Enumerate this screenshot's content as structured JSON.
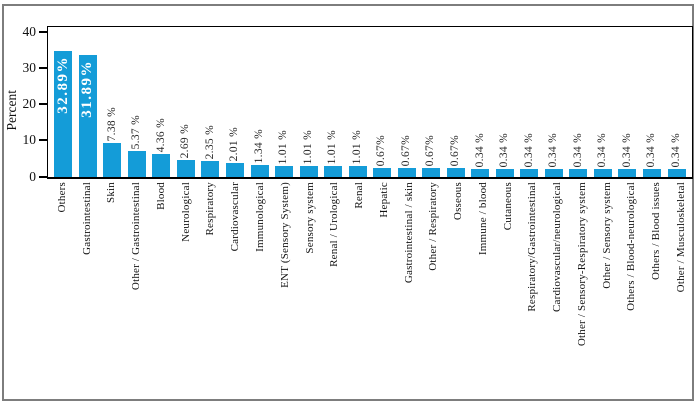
{
  "chart_data": {
    "type": "bar",
    "title": "",
    "xlabel": "",
    "ylabel": "Percent",
    "ylim": [
      0,
      40
    ],
    "yticks": [
      0,
      10,
      20,
      30,
      40
    ],
    "grid": false,
    "legend": null,
    "bar_color": "#149cd8",
    "categories": [
      "Others",
      "Gastrointestinal",
      "Skin",
      "Other / Gastrointestinal",
      "Blood",
      "Neurological",
      "Respiratory",
      "Cardiovascular",
      "Immunological",
      "ENT (Sensory System)",
      "Sensory system",
      "Renal / Urological",
      "Renal",
      "Hepatic",
      "Gastrointestinal / skin",
      "Other / Respiratory",
      "Osseous",
      "Immune / blood",
      "Cutaneous",
      "Respiratory/Gastrointestinal",
      "Cardiovascular/neurological",
      "Other / Sensory-Respiratory system",
      "Other / Sensory system",
      "Others / Blood-neurological",
      "Others / Blood issues",
      "Other / Musculoskeletal"
    ],
    "values": [
      32.89,
      31.89,
      7.38,
      5.37,
      4.36,
      2.69,
      2.35,
      2.01,
      1.34,
      1.01,
      1.01,
      1.01,
      1.01,
      0.67,
      0.67,
      0.67,
      0.67,
      0.34,
      0.34,
      0.34,
      0.34,
      0.34,
      0.34,
      0.34,
      0.34,
      0.34
    ],
    "value_labels": [
      "32.89%",
      "31.89%",
      "7.38 %",
      "5.37 %",
      "4.36 %",
      "2.69 %",
      "2.35 %",
      "2.01 %",
      "1.34 %",
      "1.01 %",
      "1.01 %",
      "1.01 %",
      "1.01 %",
      "0.67%",
      "0.67%",
      "0.67%",
      "0.67%",
      "0.34 %",
      "0.34 %",
      "0.34 %",
      "0.34 %",
      "0.34 %",
      "0.34 %",
      "0.34 %",
      "0.34 %",
      "0.34 %"
    ]
  }
}
